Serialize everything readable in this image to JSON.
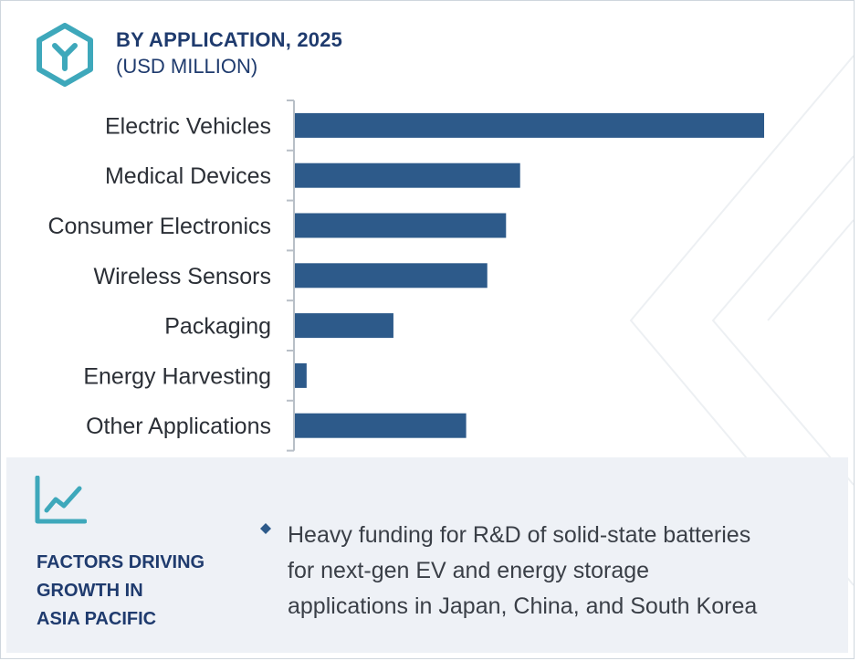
{
  "header": {
    "title": "BY APPLICATION, 2025",
    "subtitle": "(USD MILLION)",
    "logo_icon": "hexagon-y-logo-icon"
  },
  "chart_data": {
    "type": "bar",
    "orientation": "horizontal",
    "title": "BY APPLICATION, 2025",
    "subtitle": "(USD MILLION)",
    "categories": [
      "Electric Vehicles",
      "Medical Devices",
      "Consumer Electronics",
      "Wireless Sensors ",
      "Packaging",
      "Energy Harvesting",
      "Other Applications"
    ],
    "values": [
      100,
      48,
      45,
      41,
      21,
      2.5,
      36.5
    ],
    "value_axis_labeled": false,
    "xlim": [
      0,
      100
    ],
    "grid": false,
    "legend": "none",
    "bar_color": "#2d5a8a"
  },
  "factors": {
    "icon": "line-chart-icon",
    "heading_lines": [
      "FACTORS DRIVING",
      "GROWTH IN",
      "ASIA PACIFIC"
    ],
    "bullet_icon": "diamond-bullet-icon",
    "bullet_lines": [
      "Heavy funding for R&D of solid-state batteries",
      "for next-gen EV and energy storage",
      "applications in Japan, China, and South Korea"
    ]
  },
  "colors": {
    "accent": "#3ea8bb",
    "heading": "#1f3b6e",
    "bar": "#2d5a8a",
    "panel": "#eef1f6",
    "body_text": "#3a3f47"
  }
}
